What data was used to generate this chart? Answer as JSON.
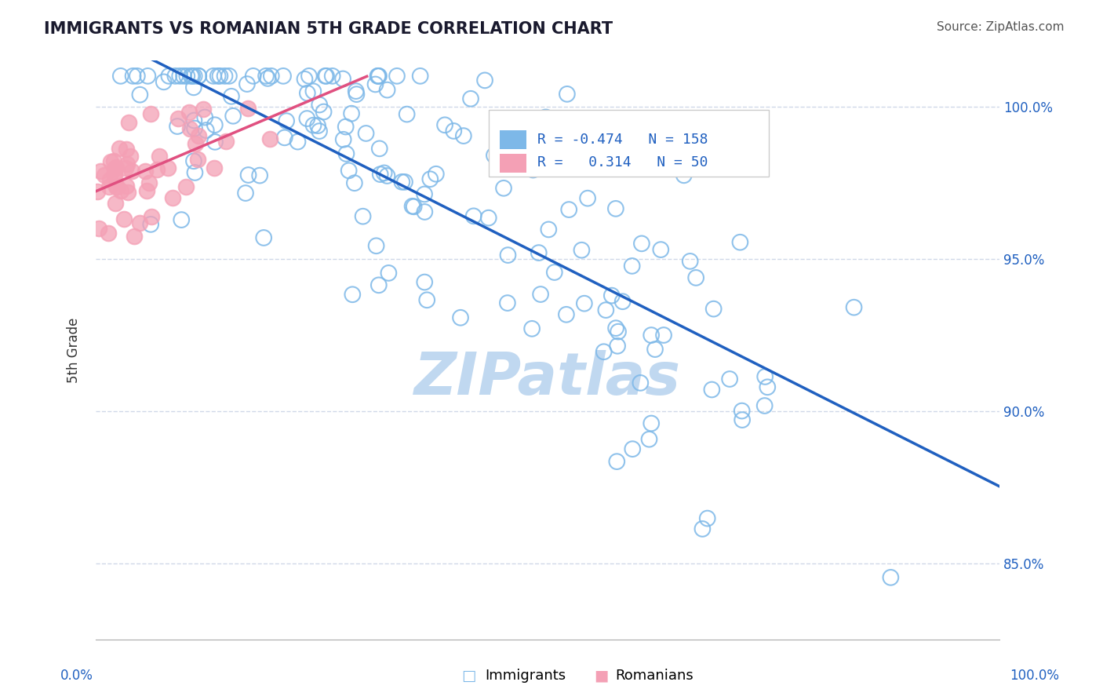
{
  "title": "IMMIGRANTS VS ROMANIAN 5TH GRADE CORRELATION CHART",
  "source_text": "Source: ZipAtlas.com",
  "ylabel": "5th Grade",
  "xlim": [
    0.0,
    1.0
  ],
  "ylim": [
    0.825,
    1.015
  ],
  "R_immigrants": -0.474,
  "N_immigrants": 158,
  "R_romanians": 0.314,
  "N_romanians": 50,
  "immigrants_color": "#7db8e8",
  "romanians_color": "#f4a0b5",
  "trend_immigrants_color": "#2060c0",
  "trend_romanians_color": "#e05080",
  "watermark_text": "ZIPatlas",
  "watermark_color": "#c0d8f0",
  "legend_R_color": "#2060c0",
  "background_color": "#ffffff",
  "grid_color": "#d0d8e8",
  "title_color": "#1a1a2e",
  "source_color": "#555555",
  "ytick_vals": [
    0.85,
    0.9,
    0.95,
    1.0
  ],
  "ytick_labels": [
    "85.0%",
    "90.0%",
    "95.0%",
    "100.0%"
  ]
}
